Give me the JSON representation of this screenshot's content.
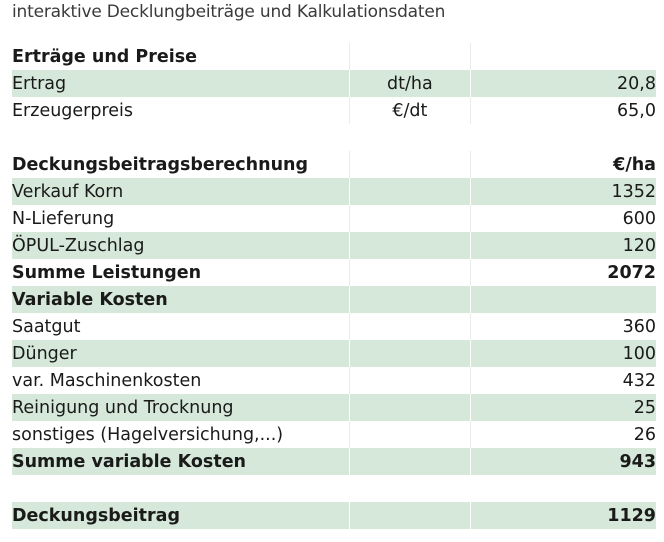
{
  "caption": "interaktive Decklungbeiträge und Kalkulationsdaten",
  "prices": {
    "heading": "Erträge und Preise",
    "rows": [
      {
        "label": "Ertrag",
        "unit": "dt/ha",
        "value": "20,8"
      },
      {
        "label": "Erzeugerpreis",
        "unit": "€/dt",
        "value": "65,0"
      }
    ]
  },
  "db": {
    "heading": "Deckungsbeitragsberechnung",
    "unit": "€/ha",
    "revenue_rows": [
      {
        "label": "Verkauf Korn",
        "value": "1352"
      },
      {
        "label": "N-Lieferung",
        "value": "600"
      },
      {
        "label": "ÖPUL-Zuschlag",
        "value": "120"
      }
    ],
    "revenue_total": {
      "label": "Summe Leistungen",
      "value": "2072"
    },
    "costs_heading": "Variable Kosten",
    "cost_rows": [
      {
        "label": "Saatgut",
        "value": "360"
      },
      {
        "label": "Dünger",
        "value": "100"
      },
      {
        "label": "var. Maschinenkosten",
        "value": "432"
      },
      {
        "label": "Reinigung und Trocknung",
        "value": "25"
      },
      {
        "label": "sonstiges (Hagelversichung,...)",
        "value": "26"
      }
    ],
    "cost_total": {
      "label": "Summe variable Kosten",
      "value": "943"
    },
    "result": {
      "label": "Deckungsbeitrag",
      "value": "1129"
    }
  }
}
